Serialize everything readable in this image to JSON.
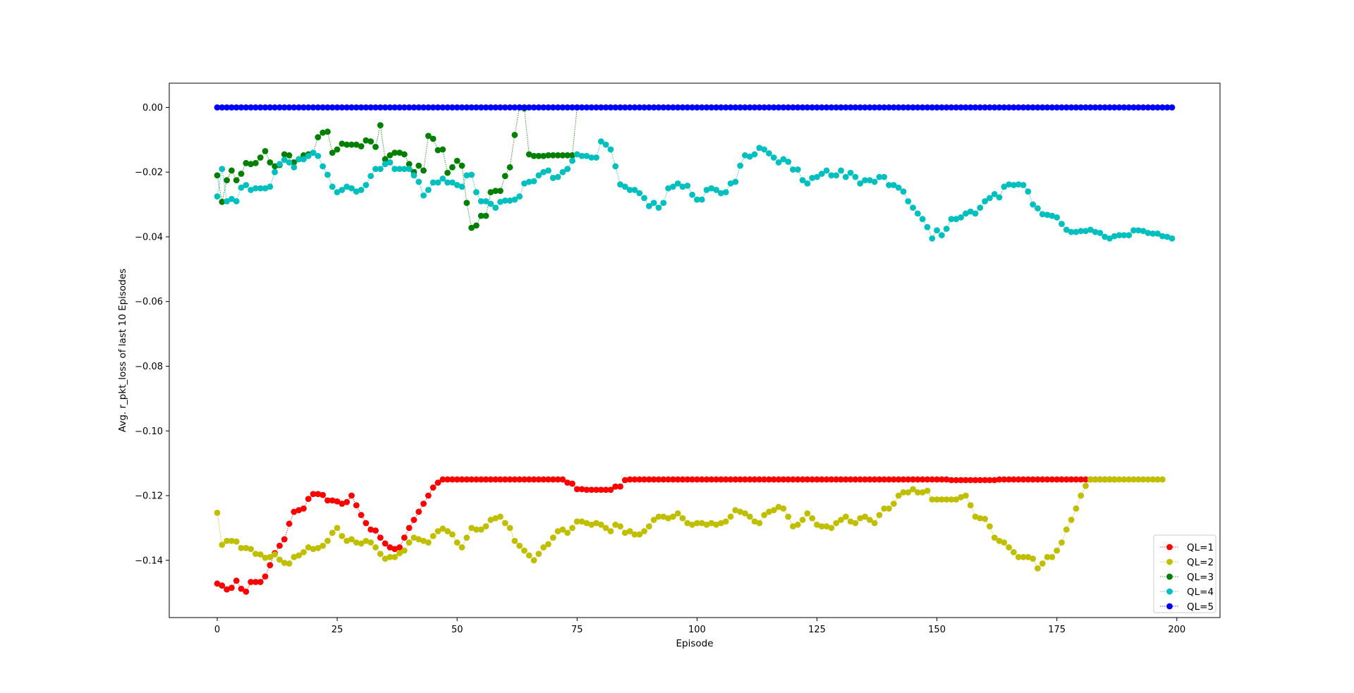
{
  "chart_data": {
    "type": "line",
    "title": "",
    "xlabel": "Episode",
    "ylabel": "Avg. r_pkt_loss of last 10 Episodes",
    "xlim": [
      -10,
      209
    ],
    "ylim": [
      -0.1577,
      0.0075
    ],
    "xticks": [
      0,
      25,
      50,
      75,
      100,
      125,
      150,
      175,
      200
    ],
    "xtick_labels": [
      "0",
      "25",
      "50",
      "75",
      "100",
      "125",
      "150",
      "175",
      "200"
    ],
    "yticks": [
      0.0,
      -0.02,
      -0.04,
      -0.06,
      -0.08,
      -0.1,
      -0.12,
      -0.14
    ],
    "ytick_labels": [
      "0.00",
      "−0.02",
      "−0.04",
      "−0.06",
      "−0.08",
      "−0.10",
      "−0.12",
      "−0.14"
    ],
    "grid": false,
    "legend_position": "lower-right",
    "x_start": 0,
    "series": [
      {
        "name": "QL=1",
        "color": "#ff0000",
        "values": [
          -0.1472,
          -0.1478,
          -0.149,
          -0.1485,
          -0.1463,
          -0.1488,
          -0.1497,
          -0.1467,
          -0.1467,
          -0.1467,
          -0.145,
          -0.1415,
          -0.1378,
          -0.1355,
          -0.1335,
          -0.1287,
          -0.125,
          -0.1245,
          -0.124,
          -0.121,
          -0.1195,
          -0.1195,
          -0.1198,
          -0.1215,
          -0.1215,
          -0.1218,
          -0.1225,
          -0.122,
          -0.12,
          -0.123,
          -0.126,
          -0.1285,
          -0.1305,
          -0.1308,
          -0.133,
          -0.1348,
          -0.136,
          -0.1365,
          -0.136,
          -0.133,
          -0.13,
          -0.1275,
          -0.125,
          -0.1225,
          -0.12,
          -0.1175,
          -0.116,
          -0.115,
          -0.115,
          -0.115,
          -0.115,
          -0.115,
          -0.115,
          -0.115,
          -0.115,
          -0.115,
          -0.115,
          -0.115,
          -0.115,
          -0.115,
          -0.115,
          -0.115,
          -0.115,
          -0.115,
          -0.115,
          -0.115,
          -0.115,
          -0.115,
          -0.115,
          -0.115,
          -0.115,
          -0.115,
          -0.115,
          -0.116,
          -0.1163,
          -0.118,
          -0.118,
          -0.1182,
          -0.1182,
          -0.1182,
          -0.1182,
          -0.1182,
          -0.1182,
          -0.1172,
          -0.1172,
          -0.1152,
          -0.115,
          -0.115,
          -0.115,
          -0.115,
          -0.115,
          -0.115,
          -0.115,
          -0.115,
          -0.115,
          -0.115,
          -0.115,
          -0.115,
          -0.115,
          -0.115,
          -0.115,
          -0.115,
          -0.115,
          -0.115,
          -0.115,
          -0.115,
          -0.115,
          -0.115,
          -0.115,
          -0.115,
          -0.115,
          -0.115,
          -0.115,
          -0.115,
          -0.115,
          -0.115,
          -0.115,
          -0.115,
          -0.115,
          -0.115,
          -0.115,
          -0.115,
          -0.115,
          -0.115,
          -0.115,
          -0.115,
          -0.115,
          -0.115,
          -0.115,
          -0.115,
          -0.115,
          -0.115,
          -0.115,
          -0.115,
          -0.115,
          -0.115,
          -0.115,
          -0.115,
          -0.115,
          -0.115,
          -0.115,
          -0.115,
          -0.115,
          -0.115,
          -0.115,
          -0.115,
          -0.115,
          -0.115,
          -0.115,
          -0.115,
          -0.115,
          -0.115,
          -0.115,
          -0.1152,
          -0.1152,
          -0.1152,
          -0.1152,
          -0.1152,
          -0.1152,
          -0.1152,
          -0.1152,
          -0.1152,
          -0.1152,
          -0.115,
          -0.115,
          -0.115,
          -0.115,
          -0.115,
          -0.115,
          -0.115,
          -0.115,
          -0.115,
          -0.115,
          -0.115,
          -0.115,
          -0.115,
          -0.115,
          -0.115,
          -0.115,
          -0.115,
          -0.115,
          -0.115,
          -0.115,
          -0.115,
          -0.115,
          -0.115,
          -0.115,
          -0.115
        ]
      },
      {
        "name": "QL=2",
        "color": "#bfbf00",
        "values": [
          -0.1253,
          -0.1352,
          -0.134,
          -0.134,
          -0.1342,
          -0.1362,
          -0.1362,
          -0.1365,
          -0.138,
          -0.1382,
          -0.1392,
          -0.139,
          -0.1382,
          -0.1398,
          -0.1408,
          -0.141,
          -0.139,
          -0.1385,
          -0.1375,
          -0.136,
          -0.1365,
          -0.1362,
          -0.1355,
          -0.134,
          -0.1315,
          -0.13,
          -0.1325,
          -0.134,
          -0.1335,
          -0.1345,
          -0.1348,
          -0.134,
          -0.1345,
          -0.136,
          -0.138,
          -0.1395,
          -0.139,
          -0.139,
          -0.1378,
          -0.137,
          -0.1345,
          -0.133,
          -0.1335,
          -0.134,
          -0.1345,
          -0.1325,
          -0.131,
          -0.1302,
          -0.131,
          -0.132,
          -0.1345,
          -0.136,
          -0.133,
          -0.13,
          -0.1305,
          -0.1305,
          -0.1295,
          -0.1275,
          -0.127,
          -0.1265,
          -0.1285,
          -0.13,
          -0.134,
          -0.1355,
          -0.137,
          -0.1385,
          -0.14,
          -0.138,
          -0.136,
          -0.135,
          -0.133,
          -0.131,
          -0.1305,
          -0.1315,
          -0.13,
          -0.128,
          -0.128,
          -0.1285,
          -0.129,
          -0.1285,
          -0.129,
          -0.13,
          -0.131,
          -0.129,
          -0.1295,
          -0.1315,
          -0.131,
          -0.132,
          -0.132,
          -0.131,
          -0.1295,
          -0.1275,
          -0.1265,
          -0.1265,
          -0.127,
          -0.1265,
          -0.1255,
          -0.127,
          -0.1285,
          -0.129,
          -0.1285,
          -0.1285,
          -0.129,
          -0.1285,
          -0.129,
          -0.1285,
          -0.128,
          -0.1265,
          -0.1245,
          -0.125,
          -0.1255,
          -0.1265,
          -0.128,
          -0.1285,
          -0.126,
          -0.125,
          -0.1245,
          -0.1235,
          -0.124,
          -0.1265,
          -0.1295,
          -0.129,
          -0.1275,
          -0.1255,
          -0.127,
          -0.129,
          -0.1295,
          -0.1295,
          -0.13,
          -0.1285,
          -0.1275,
          -0.1265,
          -0.128,
          -0.1285,
          -0.127,
          -0.1265,
          -0.1275,
          -0.1285,
          -0.126,
          -0.124,
          -0.124,
          -0.1225,
          -0.12,
          -0.119,
          -0.119,
          -0.118,
          -0.119,
          -0.119,
          -0.1185,
          -0.1212,
          -0.1212,
          -0.1212,
          -0.1212,
          -0.1212,
          -0.1212,
          -0.1205,
          -0.12,
          -0.123,
          -0.1265,
          -0.127,
          -0.1272,
          -0.1295,
          -0.133,
          -0.134,
          -0.1345,
          -0.136,
          -0.1375,
          -0.139,
          -0.139,
          -0.139,
          -0.1395,
          -0.1425,
          -0.141,
          -0.139,
          -0.139,
          -0.137,
          -0.1345,
          -0.1305,
          -0.1275,
          -0.124,
          -0.12,
          -0.117,
          -0.115,
          -0.115,
          -0.115,
          -0.115,
          -0.115,
          -0.115,
          -0.115,
          -0.115,
          -0.115,
          -0.115,
          -0.115,
          -0.115,
          -0.115,
          -0.115,
          -0.115,
          -0.115
        ]
      },
      {
        "name": "QL=3",
        "color": "#008000",
        "values": [
          -0.021,
          -0.0292,
          -0.0225,
          -0.0195,
          -0.0225,
          -0.0205,
          -0.0172,
          -0.0175,
          -0.0172,
          -0.0155,
          -0.0135,
          -0.017,
          -0.0182,
          -0.0178,
          -0.0145,
          -0.0148,
          -0.017,
          -0.016,
          -0.0148,
          -0.0145,
          -0.014,
          -0.0092,
          -0.0078,
          -0.0075,
          -0.014,
          -0.013,
          -0.0112,
          -0.0115,
          -0.0115,
          -0.0115,
          -0.012,
          -0.0102,
          -0.0105,
          -0.0122,
          -0.0055,
          -0.016,
          -0.0148,
          -0.014,
          -0.014,
          -0.0145,
          -0.0175,
          -0.02,
          -0.018,
          -0.0195,
          -0.0088,
          -0.0097,
          -0.0132,
          -0.013,
          -0.0202,
          -0.0185,
          -0.0165,
          -0.018,
          -0.0295,
          -0.0372,
          -0.0365,
          -0.0335,
          -0.0335,
          -0.0262,
          -0.0258,
          -0.0258,
          -0.0212,
          -0.0185,
          -0.0085,
          0.0,
          -0.0003,
          -0.0145,
          -0.015,
          -0.015,
          -0.015,
          -0.0148,
          -0.0148,
          -0.0148,
          -0.0148,
          -0.0148,
          -0.0148,
          0.0
        ]
      },
      {
        "name": "QL=4",
        "color": "#00bfbf",
        "values": [
          -0.0275,
          -0.019,
          -0.029,
          -0.0283,
          -0.029,
          -0.0248,
          -0.024,
          -0.0255,
          -0.025,
          -0.025,
          -0.025,
          -0.0245,
          -0.02,
          -0.0175,
          -0.0162,
          -0.017,
          -0.0185,
          -0.016,
          -0.016,
          -0.015,
          -0.014,
          -0.015,
          -0.0182,
          -0.0208,
          -0.0245,
          -0.0262,
          -0.0255,
          -0.0245,
          -0.025,
          -0.026,
          -0.0255,
          -0.024,
          -0.0212,
          -0.019,
          -0.019,
          -0.0175,
          -0.017,
          -0.019,
          -0.019,
          -0.019,
          -0.019,
          -0.021,
          -0.023,
          -0.0272,
          -0.0255,
          -0.0232,
          -0.0232,
          -0.022,
          -0.0232,
          -0.0232,
          -0.024,
          -0.0245,
          -0.021,
          -0.0208,
          -0.0262,
          -0.029,
          -0.029,
          -0.0298,
          -0.031,
          -0.0292,
          -0.0288,
          -0.0288,
          -0.0285,
          -0.0275,
          -0.0235,
          -0.023,
          -0.0228,
          -0.021,
          -0.02,
          -0.0195,
          -0.0218,
          -0.0215,
          -0.02,
          -0.019,
          -0.0165,
          -0.0145,
          -0.015,
          -0.015,
          -0.0155,
          -0.0155,
          -0.0105,
          -0.0115,
          -0.013,
          -0.0182,
          -0.0238,
          -0.0245,
          -0.0255,
          -0.0255,
          -0.0265,
          -0.028,
          -0.0305,
          -0.0295,
          -0.031,
          -0.0295,
          -0.025,
          -0.0245,
          -0.0235,
          -0.0245,
          -0.0242,
          -0.027,
          -0.0285,
          -0.0285,
          -0.0255,
          -0.025,
          -0.0255,
          -0.0265,
          -0.0262,
          -0.0235,
          -0.023,
          -0.018,
          -0.0148,
          -0.0152,
          -0.0145,
          -0.0125,
          -0.013,
          -0.0142,
          -0.0155,
          -0.017,
          -0.016,
          -0.0168,
          -0.0192,
          -0.0192,
          -0.0225,
          -0.0235,
          -0.0218,
          -0.0215,
          -0.0205,
          -0.0195,
          -0.021,
          -0.021,
          -0.0195,
          -0.0215,
          -0.0202,
          -0.0215,
          -0.0235,
          -0.0225,
          -0.0225,
          -0.023,
          -0.0215,
          -0.0215,
          -0.024,
          -0.024,
          -0.0248,
          -0.026,
          -0.029,
          -0.031,
          -0.0328,
          -0.0345,
          -0.037,
          -0.0405,
          -0.038,
          -0.0395,
          -0.0375,
          -0.0345,
          -0.0345,
          -0.034,
          -0.0328,
          -0.0322,
          -0.0328,
          -0.031,
          -0.029,
          -0.028,
          -0.0268,
          -0.0278,
          -0.0245,
          -0.0238,
          -0.024,
          -0.0238,
          -0.024,
          -0.026,
          -0.03,
          -0.0312,
          -0.033,
          -0.0332,
          -0.0335,
          -0.034,
          -0.036,
          -0.0378,
          -0.0385,
          -0.0385,
          -0.0382,
          -0.0382,
          -0.0378,
          -0.0385,
          -0.0388,
          -0.04,
          -0.0405,
          -0.0398,
          -0.0395,
          -0.0395,
          -0.0395,
          -0.038,
          -0.038,
          -0.0382,
          -0.0388,
          -0.039,
          -0.039,
          -0.0398,
          -0.04,
          -0.0405
        ]
      },
      {
        "name": "QL=5",
        "color": "#0000ff",
        "constant": 0.0,
        "count": 200
      }
    ]
  }
}
